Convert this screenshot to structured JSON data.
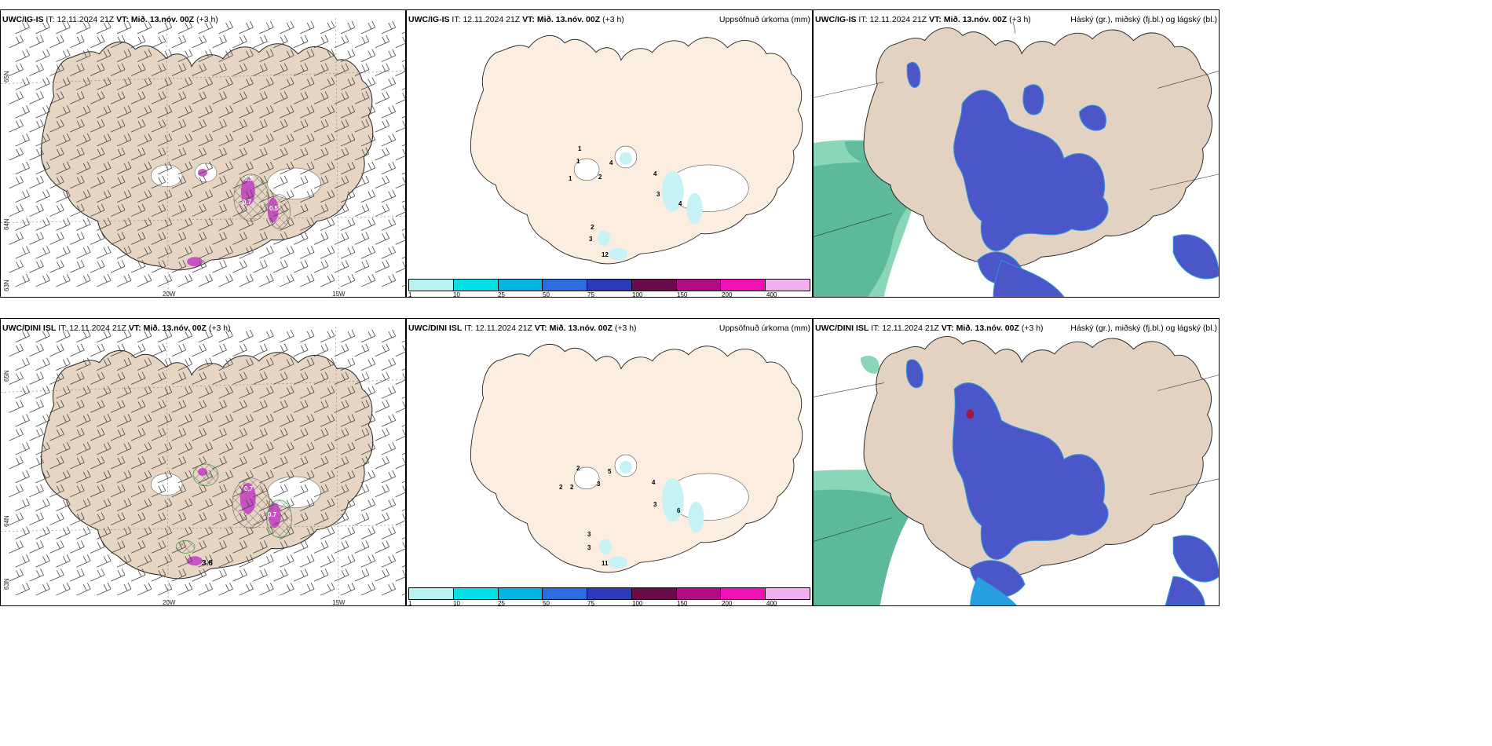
{
  "rows": [
    {
      "model": "UWC/IG-IS",
      "it_label": "IT:",
      "it_value": "12.11.2024 21Z",
      "vt_label": "VT:",
      "vt_value": "Mið. 13.nóv. 00Z",
      "lead": "(+3 h)",
      "wind_labels": {
        "lat_top": "65N",
        "lat_mid": "64N",
        "lat_bot": "63N",
        "lon_left": "20W",
        "lon_right": "15W",
        "iso_a": "0.5",
        "iso_b": "0.7",
        "iso_c": "0.5"
      },
      "precip_values": [
        "1",
        "1",
        "1",
        "2",
        "4",
        "4",
        "3",
        "4",
        "2",
        "3",
        "12"
      ]
    },
    {
      "model": "UWC/DINI ISL",
      "it_label": "IT:",
      "it_value": "12.11.2024 21Z",
      "vt_label": "VT:",
      "vt_value": "Mið. 13.nóv. 00Z",
      "lead": "(+3 h)",
      "wind_labels": {
        "lat_top": "65N",
        "lat_mid": "64N",
        "lat_bot": "63N",
        "lon_left": "20W",
        "lon_right": "15W",
        "iso_a": "0.7",
        "iso_b": "0.7",
        "iso_c": "3.6"
      },
      "precip_values": [
        "2",
        "2",
        "2",
        "3",
        "5",
        "4",
        "3",
        "6",
        "3",
        "3",
        "11"
      ]
    }
  ],
  "precip_title": "Uppsöfnuð úrkoma (mm)",
  "cloud_title": "Háský (gr.), miðský (fj.bl.) og lágský (bl.)",
  "colorbar": {
    "labels": [
      "1",
      "10",
      "25",
      "50",
      "75",
      "100",
      "150",
      "200",
      "400"
    ],
    "colors": [
      "#b8f2f2",
      "#00e0e6",
      "#00b4e6",
      "#2a6de0",
      "#2c3ab8",
      "#6a0a4a",
      "#b00c86",
      "#f010b8",
      "#f2b0ee"
    ]
  },
  "colors": {
    "land_wind": "#e6d5c2",
    "land_precip": "#fbeee0",
    "land_cloud": "#e3d2c2",
    "precip_light": "#c6f2f5",
    "cloud_high_low": "#4b56c8",
    "cloud_mid": "#5cb99a",
    "iso_magenta": "#c23cc2"
  }
}
